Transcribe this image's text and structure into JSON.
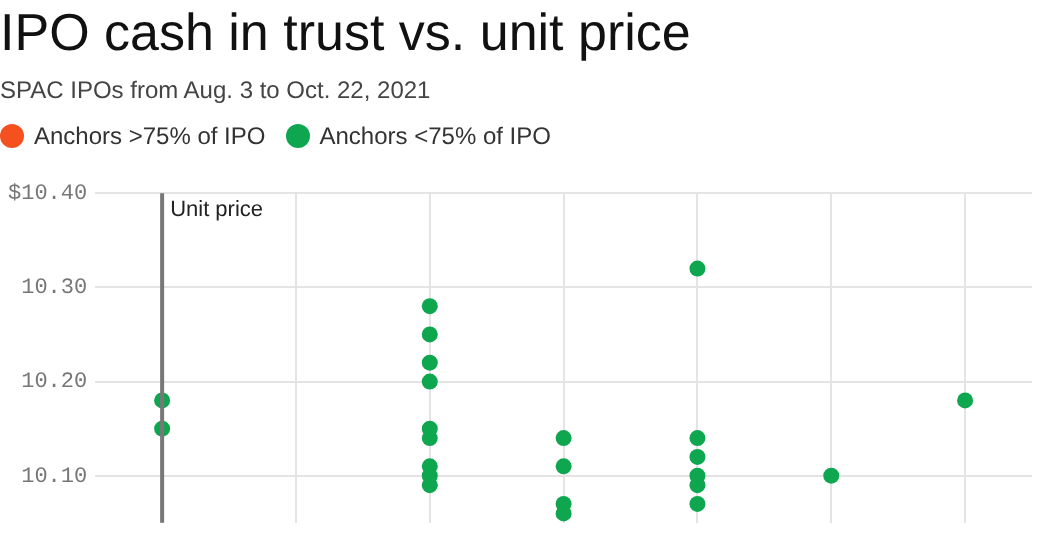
{
  "chart_data": {
    "type": "scatter",
    "title": "IPO cash in trust vs. unit price",
    "subtitle": "SPAC IPOs from Aug. 3 to Oct. 22, 2021",
    "ylabel": "Unit price",
    "categories": [
      null,
      null,
      null,
      null,
      null,
      null,
      null
    ],
    "series": [
      {
        "name": "Anchors >75% of IPO",
        "color": "#f4511e",
        "values": [
          null,
          null,
          null,
          null,
          null,
          null,
          null
        ]
      },
      {
        "name": "Anchors <75% of IPO",
        "color": "#0fa650",
        "values": [
          10.18,
          null,
          10.28,
          10.14,
          10.32,
          10.1,
          10.18
        ]
      },
      {
        "color": "#0fa650",
        "values": [
          10.15,
          null,
          10.25,
          10.11,
          10.14,
          null,
          null
        ]
      },
      {
        "color": "#0fa650",
        "values": [
          null,
          null,
          10.22,
          10.07,
          10.12,
          null,
          null
        ]
      },
      {
        "color": "#0fa650",
        "values": [
          null,
          null,
          10.2,
          10.06,
          10.1,
          null,
          null
        ]
      },
      {
        "color": "#0fa650",
        "values": [
          null,
          null,
          10.15,
          null,
          10.09,
          null,
          null
        ]
      },
      {
        "color": "#0fa650",
        "values": [
          null,
          null,
          10.14,
          null,
          10.07,
          null,
          null
        ]
      },
      {
        "color": "#0fa650",
        "values": [
          null,
          null,
          10.11,
          null,
          null,
          null,
          null
        ]
      },
      {
        "color": "#0fa650",
        "values": [
          null,
          null,
          10.1,
          null,
          null,
          null,
          null
        ]
      },
      {
        "color": "#0fa650",
        "values": [
          null,
          null,
          10.09,
          null,
          null,
          null,
          null
        ]
      }
    ],
    "ylim": [
      10.05,
      10.4
    ],
    "yticks": [
      {
        "value": 10.1,
        "label": "10.10"
      },
      {
        "value": 10.2,
        "label": "10.20"
      },
      {
        "value": 10.3,
        "label": "10.30"
      },
      {
        "value": 10.4,
        "label": "$10.40"
      }
    ],
    "grid": true,
    "legend": "top",
    "marker": "circle",
    "tick_labels": "y"
  }
}
